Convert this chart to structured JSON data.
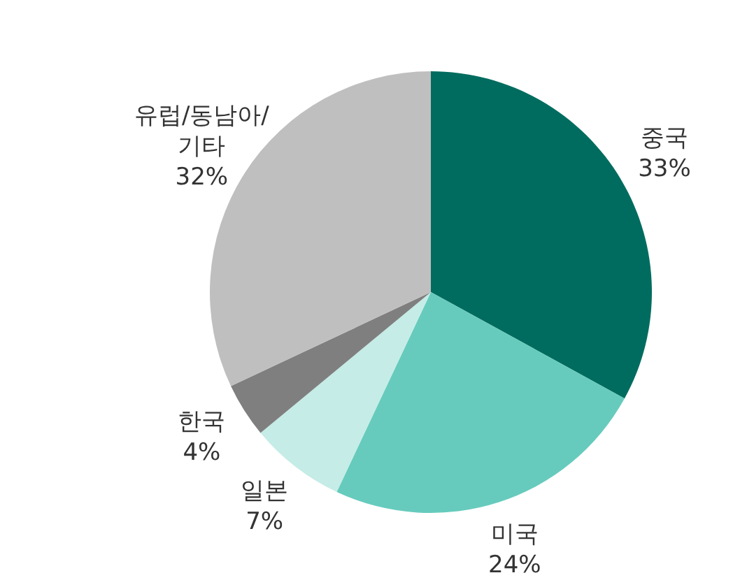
{
  "chart_data": {
    "type": "pie",
    "categories": [
      "중국",
      "미국",
      "일본",
      "한국",
      "유럽/동남아/기타"
    ],
    "values": [
      33,
      24,
      7,
      4,
      32
    ],
    "colors": [
      "#006c5f",
      "#66cbbd",
      "#c5ece6",
      "#7f7f7f",
      "#bfbfbf"
    ],
    "value_labels": [
      "33%",
      "24%",
      "7%",
      "4%",
      "32%"
    ],
    "legend": false
  }
}
